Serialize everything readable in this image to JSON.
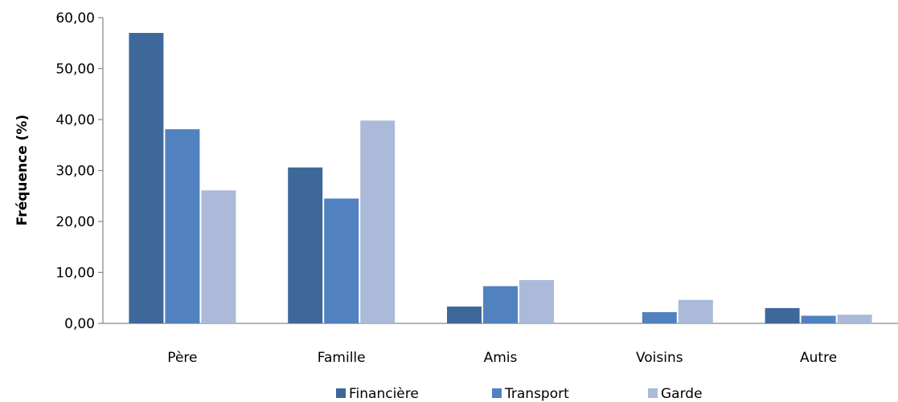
{
  "chart_data": {
    "type": "bar",
    "categories": [
      "Père",
      "Famille",
      "Amis",
      "Voisins",
      "Autre"
    ],
    "series": [
      {
        "name": "Financière",
        "values": [
          57.0,
          30.6,
          3.3,
          0.0,
          3.0
        ],
        "color": "#3E6899"
      },
      {
        "name": "Transport",
        "values": [
          38.1,
          24.5,
          7.3,
          2.2,
          1.5
        ],
        "color": "#5182BF"
      },
      {
        "name": "Garde",
        "values": [
          26.1,
          39.8,
          8.5,
          4.6,
          1.7
        ],
        "color": "#ABBAD9"
      }
    ],
    "xlabel": "",
    "ylabel": "Fréquence (%)",
    "ylim": [
      0,
      60
    ],
    "yticks": [
      "0,00",
      "10,00",
      "20,00",
      "30,00",
      "40,00",
      "50,00",
      "60,00"
    ],
    "grid": false,
    "legend_position": "bottom"
  }
}
